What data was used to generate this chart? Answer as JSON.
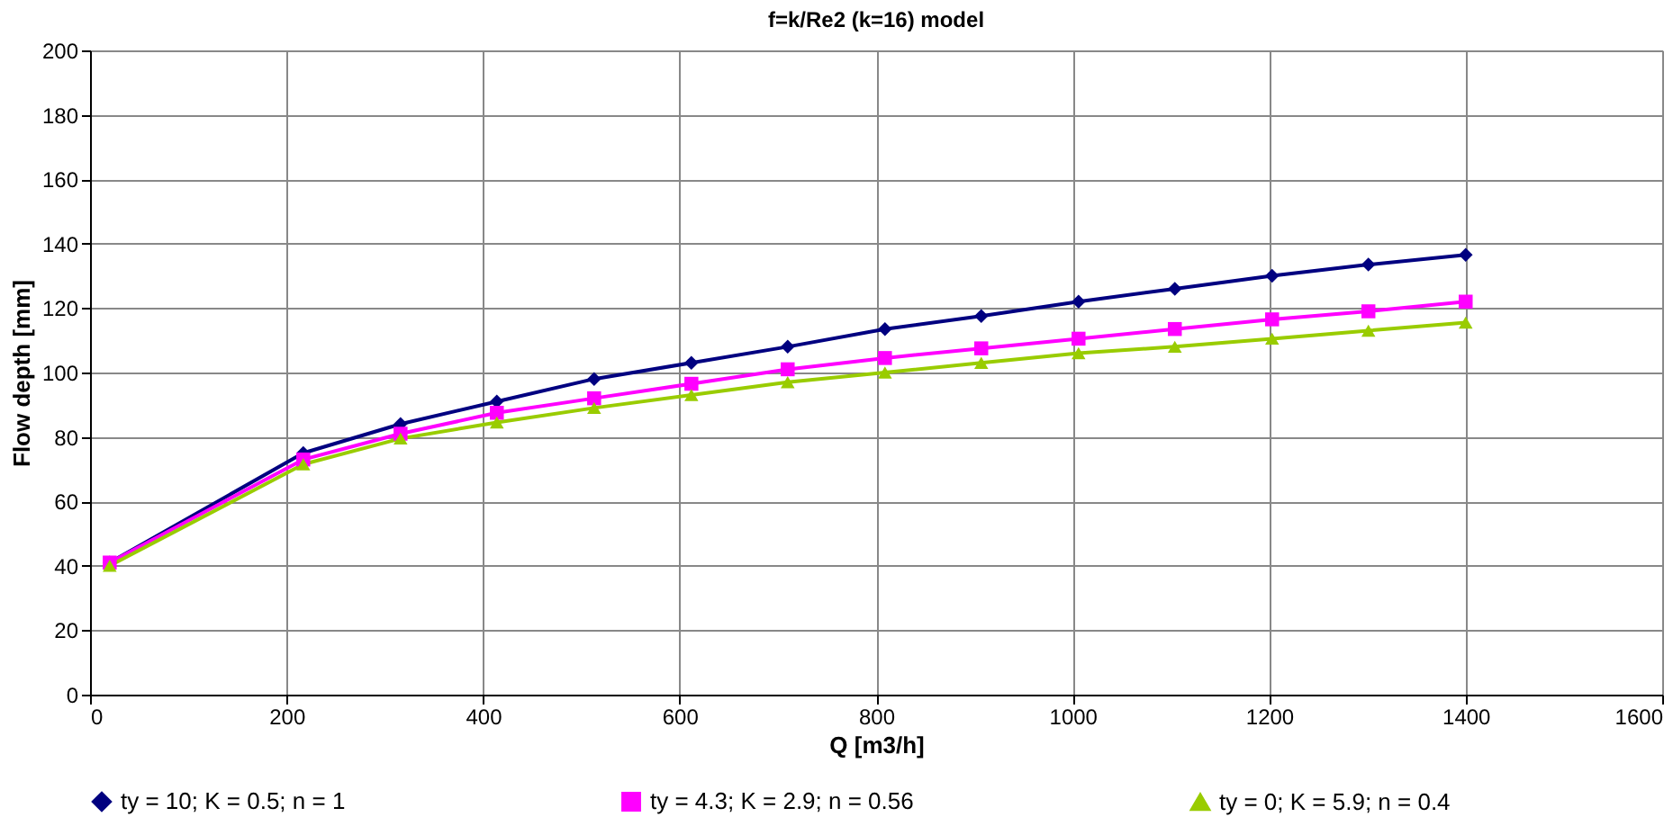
{
  "chart_data": {
    "type": "line",
    "title": "f=k/Re2 (k=16) model",
    "xlabel": "Q [m3/h]",
    "ylabel": "Flow depth [mm]",
    "x": [
      20,
      217,
      316,
      414,
      513,
      612,
      710,
      809,
      907,
      1006,
      1104,
      1203,
      1301,
      1400
    ],
    "series": [
      {
        "name": "ty = 10; K = 0.5; n = 1",
        "color": "#000080",
        "marker": "diamond",
        "values": [
          41,
          75,
          84,
          91,
          98,
          103,
          108,
          113.5,
          117.5,
          122,
          126,
          130,
          133.5,
          136.5
        ]
      },
      {
        "name": "ty = 4.3; K = 2.9; n = 0.56",
        "color": "#ff00ff",
        "marker": "square",
        "values": [
          41,
          73,
          81,
          87.5,
          92,
          96.5,
          101,
          104.5,
          107.5,
          110.5,
          113.5,
          116.5,
          119,
          122
        ]
      },
      {
        "name": "ty = 0; K = 5.9; n = 0.4",
        "color": "#99cc00",
        "marker": "triangle",
        "values": [
          40,
          71.5,
          79.5,
          84.5,
          89,
          93,
          97,
          100,
          103,
          106,
          108,
          110.5,
          113,
          115.5
        ]
      }
    ],
    "xlim": [
      0,
      1600
    ],
    "xticks": [
      0,
      200,
      400,
      600,
      800,
      1000,
      1200,
      1400,
      1600
    ],
    "ylim": [
      0,
      200
    ],
    "yticks": [
      0,
      20,
      40,
      60,
      80,
      100,
      120,
      140,
      160,
      180,
      200
    ],
    "grid": true,
    "legend": "bottom",
    "line_style": "solid"
  }
}
